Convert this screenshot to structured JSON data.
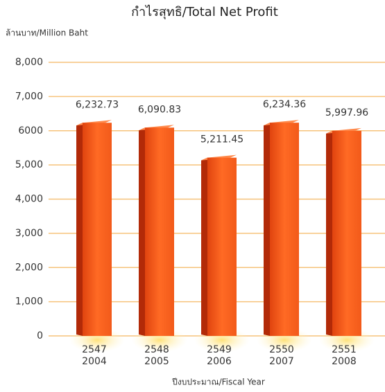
{
  "chart_data": {
    "type": "bar",
    "title": "กำไรสุทธิ/Total Net Profit",
    "y_label": "ล้านบาท/Million Baht",
    "x_label": "ปีงบประมาณ/Fiscal Year",
    "categories": [
      [
        "2547",
        "2004"
      ],
      [
        "2548",
        "2005"
      ],
      [
        "2549",
        "2006"
      ],
      [
        "2550",
        "2007"
      ],
      [
        "2551",
        "2008"
      ]
    ],
    "values": [
      6232.73,
      6090.83,
      5211.45,
      6234.36,
      5997.96
    ],
    "value_labels": [
      "6,232.73",
      "6,090.83",
      "5,211.45",
      "6,234.36",
      "5,997.96"
    ],
    "color": "#f2571b",
    "ylim": [
      0,
      8000
    ],
    "yticks": [
      0,
      {
        "value": 1000,
        "label": "1,000"
      },
      {
        "value": 2000,
        "label": "2,000"
      },
      {
        "value": 3000,
        "label": "3,000"
      },
      {
        "value": 4000,
        "label": "4,000"
      },
      {
        "value": 5000,
        "label": "5,000"
      },
      6000,
      {
        "value": 7000,
        "label": "7,000"
      },
      {
        "value": 8000,
        "label": "8,000"
      }
    ],
    "grid": true
  }
}
